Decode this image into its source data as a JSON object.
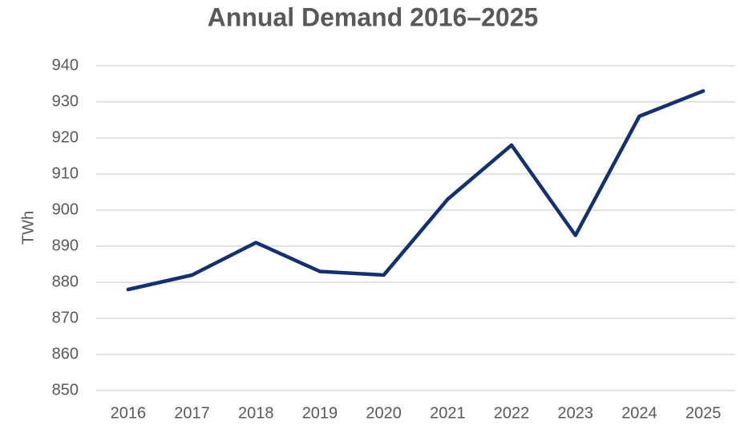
{
  "chart_data": {
    "type": "line",
    "title": "Annual Demand 2016–2025",
    "y_label": "TWh",
    "categories": [
      "2016",
      "2017",
      "2018",
      "2019",
      "2020",
      "2021",
      "2022",
      "2023",
      "2024",
      "2025"
    ],
    "series": [
      {
        "name": "Demand",
        "color": "#14306e",
        "values": [
          878,
          882,
          891,
          883,
          882,
          903,
          918,
          893,
          926,
          933
        ]
      }
    ],
    "ylim": [
      850,
      940
    ],
    "yticks": [
      850,
      860,
      870,
      880,
      890,
      900,
      910,
      920,
      930,
      940
    ],
    "grid": true
  }
}
